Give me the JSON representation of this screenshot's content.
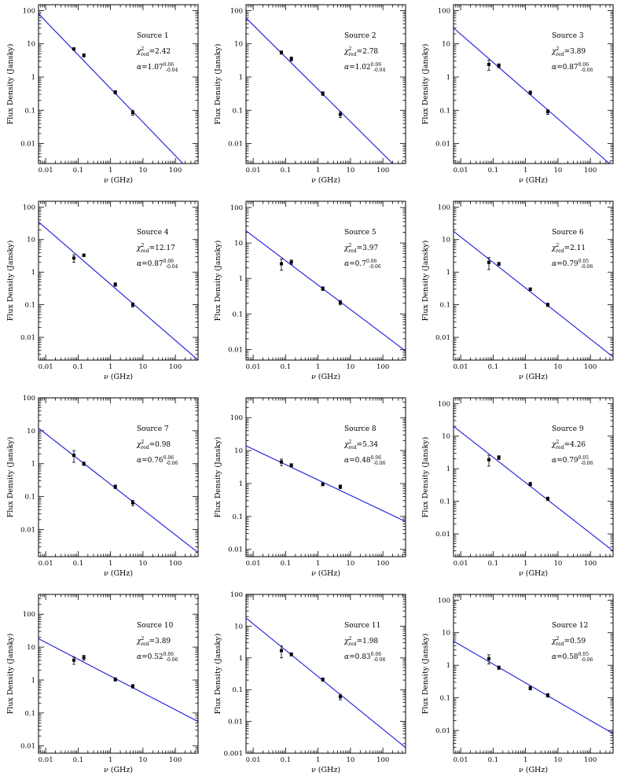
{
  "figure": {
    "xlabel_prefix": "ν",
    "xlabel_unit": "(GHz)",
    "ylabel": "Flux Density (Jansky)",
    "chi_symbol": "χ",
    "chi_sub": "red",
    "chi_sup": "2",
    "alpha_symbol": "α"
  },
  "chart_data": [
    {
      "type": "scatter",
      "title": "Source 1",
      "chi2": "=2.42",
      "alpha": "=1.07",
      "alpha_up": "0.06",
      "alpha_dn": "-0.04",
      "xlim": [
        0.006,
        500
      ],
      "ylim": [
        0.0025,
        150
      ],
      "xticks": [
        "0.01",
        "0.1",
        "1",
        "10",
        "100"
      ],
      "yticks": [
        "0.01",
        "0.1",
        "1",
        "10",
        "100"
      ],
      "x": [
        0.074,
        0.15,
        1.4,
        4.85
      ],
      "y": [
        7.0,
        4.5,
        0.35,
        0.085
      ],
      "yerr": [
        0.6,
        0.5,
        0.04,
        0.015
      ],
      "fit": {
        "x": [
          0.006,
          170
        ],
        "y": [
          80,
          0.0025
        ]
      }
    },
    {
      "type": "scatter",
      "title": "Source 2",
      "chi2": "=2.78",
      "alpha": "=1.02",
      "alpha_up": "0.06",
      "alpha_dn": "-0.04",
      "xlim": [
        0.006,
        500
      ],
      "ylim": [
        0.0025,
        150
      ],
      "xticks": [
        "0.01",
        "0.1",
        "1",
        "10",
        "100"
      ],
      "yticks": [
        "0.01",
        "0.1",
        "1",
        "10",
        "100"
      ],
      "x": [
        0.074,
        0.15,
        1.4,
        4.85
      ],
      "y": [
        5.5,
        3.5,
        0.32,
        0.075
      ],
      "yerr": [
        0.6,
        0.5,
        0.04,
        0.015
      ],
      "fit": {
        "x": [
          0.006,
          200
        ],
        "y": [
          60,
          0.0025
        ]
      }
    },
    {
      "type": "scatter",
      "title": "Source 3",
      "chi2": "=3.89",
      "alpha": "=0.87",
      "alpha_up": "0.06",
      "alpha_dn": "-0.06",
      "xlim": [
        0.006,
        500
      ],
      "ylim": [
        0.0025,
        150
      ],
      "xticks": [
        "0.01",
        "0.1",
        "1",
        "10",
        "100"
      ],
      "yticks": [
        "0.01",
        "0.1",
        "1",
        "10",
        "100"
      ],
      "x": [
        0.074,
        0.15,
        1.4,
        4.85
      ],
      "y": [
        2.4,
        2.2,
        0.34,
        0.09
      ],
      "yerr": [
        0.8,
        0.3,
        0.04,
        0.015
      ],
      "fit": {
        "x": [
          0.006,
          500
        ],
        "y": [
          30,
          0.002
        ]
      }
    },
    {
      "type": "scatter",
      "title": "Source 4",
      "chi2": "=12.17",
      "alpha": "=0.87",
      "alpha_up": "0.06",
      "alpha_dn": "-0.04",
      "xlim": [
        0.006,
        500
      ],
      "ylim": [
        0.002,
        150
      ],
      "xticks": [
        "0.01",
        "0.1",
        "1",
        "10",
        "100"
      ],
      "yticks": [
        "0.01",
        "0.1",
        "1",
        "10",
        "100"
      ],
      "x": [
        0.074,
        0.15,
        1.4,
        4.85
      ],
      "y": [
        2.7,
        3.3,
        0.42,
        0.1
      ],
      "yerr": [
        0.7,
        0.3,
        0.05,
        0.015
      ],
      "fit": {
        "x": [
          0.006,
          500
        ],
        "y": [
          35,
          0.002
        ]
      }
    },
    {
      "type": "scatter",
      "title": "Source 5",
      "chi2": "=3.97",
      "alpha": "=0.7",
      "alpha_up": "0.06",
      "alpha_dn": "-0.06",
      "xlim": [
        0.006,
        500
      ],
      "ylim": [
        0.005,
        150
      ],
      "xticks": [
        "0.01",
        "0.1",
        "1",
        "10",
        "100"
      ],
      "yticks": [
        "0.01",
        "0.1",
        "1",
        "10",
        "100"
      ],
      "x": [
        0.074,
        0.15,
        1.4,
        4.85
      ],
      "y": [
        2.6,
        2.9,
        0.52,
        0.21
      ],
      "yerr": [
        0.9,
        0.4,
        0.06,
        0.03
      ],
      "fit": {
        "x": [
          0.006,
          500
        ],
        "y": [
          22,
          0.009
        ]
      }
    },
    {
      "type": "scatter",
      "title": "Source 6",
      "chi2": "=2.11",
      "alpha": "=0.79",
      "alpha_up": "0.05",
      "alpha_dn": "-0.06",
      "xlim": [
        0.006,
        500
      ],
      "ylim": [
        0.002,
        150
      ],
      "xticks": [
        "0.01",
        "0.1",
        "1",
        "10",
        "100"
      ],
      "yticks": [
        "0.01",
        "0.1",
        "1",
        "10",
        "100"
      ],
      "x": [
        0.074,
        0.15,
        1.4,
        4.85
      ],
      "y": [
        2.0,
        1.8,
        0.3,
        0.1
      ],
      "yerr": [
        0.8,
        0.2,
        0.03,
        0.012
      ],
      "fit": {
        "x": [
          0.006,
          500
        ],
        "y": [
          18,
          0.0025
        ]
      }
    },
    {
      "type": "scatter",
      "title": "Source 7",
      "chi2": "=0.98",
      "alpha": "=0.76",
      "alpha_up": "0.06",
      "alpha_dn": "-0.06",
      "xlim": [
        0.006,
        500
      ],
      "ylim": [
        0.0015,
        100
      ],
      "xticks": [
        "0.01",
        "0.1",
        "1",
        "10",
        "100"
      ],
      "yticks": [
        "0.01",
        "0.1",
        "1",
        "10",
        "100"
      ],
      "x": [
        0.074,
        0.15,
        1.4,
        4.85
      ],
      "y": [
        1.8,
        1.0,
        0.2,
        0.065
      ],
      "yerr": [
        0.7,
        0.12,
        0.025,
        0.012
      ],
      "fit": {
        "x": [
          0.006,
          500
        ],
        "y": [
          12,
          0.002
        ]
      }
    },
    {
      "type": "scatter",
      "title": "Source 8",
      "chi2": "=5.34",
      "alpha": "=0.48",
      "alpha_up": "0.06",
      "alpha_dn": "-0.06",
      "xlim": [
        0.006,
        500
      ],
      "ylim": [
        0.006,
        400
      ],
      "xticks": [
        "0.01",
        "0.1",
        "1",
        "10",
        "100"
      ],
      "yticks": [
        "0.01",
        "0.1",
        "1",
        "10",
        "100"
      ],
      "x": [
        0.074,
        0.15,
        1.4,
        4.85
      ],
      "y": [
        4.5,
        3.6,
        0.95,
        0.8
      ],
      "yerr": [
        1.0,
        0.4,
        0.1,
        0.1
      ],
      "fit": {
        "x": [
          0.006,
          500
        ],
        "y": [
          14,
          0.07
        ]
      }
    },
    {
      "type": "scatter",
      "title": "Source 9",
      "chi2": "=4.26",
      "alpha": "=0.79",
      "alpha_up": "0.05",
      "alpha_dn": "-0.06",
      "xlim": [
        0.006,
        500
      ],
      "ylim": [
        0.002,
        150
      ],
      "xticks": [
        "0.01",
        "0.1",
        "1",
        "10",
        "100"
      ],
      "yticks": [
        "0.01",
        "0.1",
        "1",
        "10",
        "100"
      ],
      "x": [
        0.074,
        0.15,
        1.4,
        4.85
      ],
      "y": [
        1.9,
        2.2,
        0.34,
        0.12
      ],
      "yerr": [
        0.7,
        0.3,
        0.04,
        0.015
      ],
      "fit": {
        "x": [
          0.006,
          500
        ],
        "y": [
          20,
          0.003
        ]
      }
    },
    {
      "type": "scatter",
      "title": "Source 10",
      "chi2": "=3.89",
      "alpha": "=0.52",
      "alpha_up": "0.06",
      "alpha_dn": "-0.06",
      "xlim": [
        0.006,
        500
      ],
      "ylim": [
        0.006,
        400
      ],
      "xticks": [
        "0.01",
        "0.1",
        "1",
        "10",
        "100"
      ],
      "yticks": [
        "0.01",
        "0.1",
        "1",
        "10",
        "100"
      ],
      "x": [
        0.074,
        0.15,
        1.4,
        4.85
      ],
      "y": [
        4.0,
        4.8,
        1.05,
        0.65
      ],
      "yerr": [
        1.0,
        0.8,
        0.12,
        0.08
      ],
      "fit": {
        "x": [
          0.006,
          500
        ],
        "y": [
          18,
          0.055
        ]
      }
    },
    {
      "type": "scatter",
      "title": "Source 11",
      "chi2": "=1.98",
      "alpha": "=0.83",
      "alpha_up": "0.06",
      "alpha_dn": "-0.06",
      "xlim": [
        0.006,
        500
      ],
      "ylim": [
        0.001,
        100
      ],
      "xticks": [
        "0.01",
        "0.1",
        "1",
        "10",
        "100"
      ],
      "yticks": [
        "0.001",
        "0.01",
        "0.1",
        "1",
        "10",
        "100"
      ],
      "x": [
        0.074,
        0.15,
        1.4,
        4.85
      ],
      "y": [
        1.7,
        1.3,
        0.21,
        0.06
      ],
      "yerr": [
        0.7,
        0.15,
        0.025,
        0.012
      ],
      "fit": {
        "x": [
          0.006,
          500
        ],
        "y": [
          18,
          0.0015
        ]
      }
    },
    {
      "type": "scatter",
      "title": "Source 12",
      "chi2": "=0.59",
      "alpha": "=0.58",
      "alpha_up": "0.05",
      "alpha_dn": "-0.06",
      "xlim": [
        0.006,
        500
      ],
      "ylim": [
        0.002,
        150
      ],
      "xticks": [
        "0.01",
        "0.1",
        "1",
        "10",
        "100"
      ],
      "yticks": [
        "0.01",
        "0.1",
        "1",
        "10",
        "100"
      ],
      "x": [
        0.074,
        0.15,
        1.4,
        4.85
      ],
      "y": [
        1.6,
        0.85,
        0.2,
        0.12
      ],
      "yerr": [
        0.5,
        0.1,
        0.025,
        0.015
      ],
      "fit": {
        "x": [
          0.006,
          500
        ],
        "y": [
          5.5,
          0.008
        ]
      }
    }
  ]
}
